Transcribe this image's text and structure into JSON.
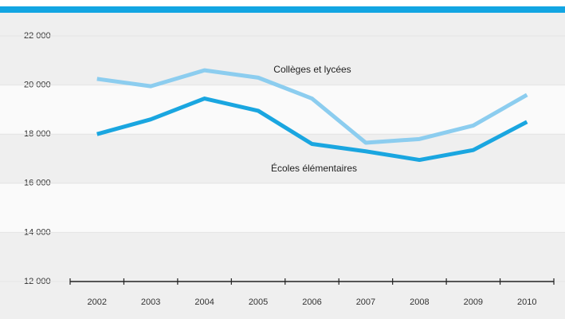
{
  "chart_data": {
    "type": "line",
    "categories": [
      "2002",
      "2003",
      "2004",
      "2005",
      "2006",
      "2007",
      "2008",
      "2009",
      "2010"
    ],
    "series": [
      {
        "name": "Collèges et lycées",
        "color": "#8ccdef",
        "values": [
          20250,
          19950,
          20600,
          20300,
          19450,
          17650,
          17800,
          18350,
          19600
        ]
      },
      {
        "name": "Écoles élémentaires",
        "color": "#1aa6e0",
        "values": [
          18000,
          18600,
          19450,
          18950,
          17600,
          17300,
          16950,
          17350,
          18500
        ]
      }
    ],
    "ylim": [
      12000,
      22000
    ],
    "yticks": [
      {
        "value": 12000,
        "label": "12 000"
      },
      {
        "value": 14000,
        "label": "14 000"
      },
      {
        "value": 16000,
        "label": "16 000"
      },
      {
        "value": 18000,
        "label": "18 000"
      },
      {
        "value": 20000,
        "label": "20 000"
      },
      {
        "value": 22000,
        "label": "22 000"
      }
    ]
  }
}
